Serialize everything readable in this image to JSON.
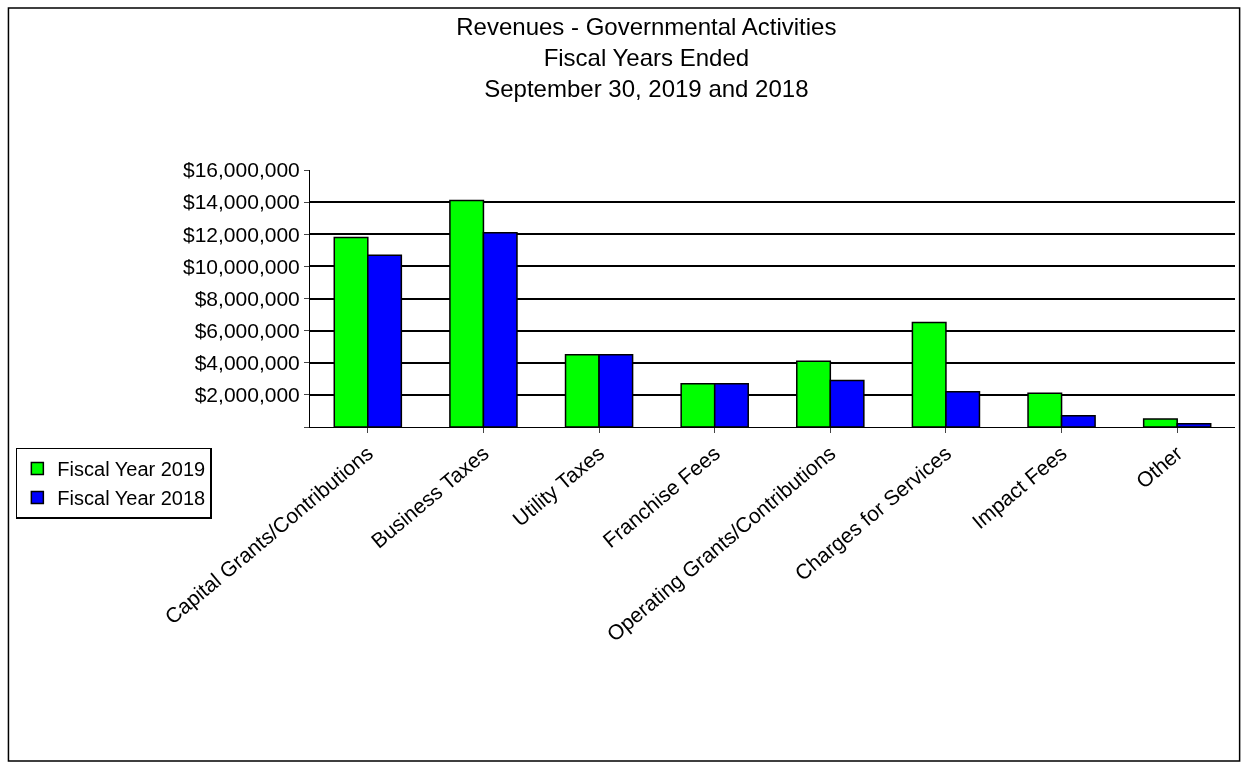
{
  "chart_data": {
    "type": "bar",
    "title": "Revenues - Governmental Activities\nFiscal Years Ended\nSeptember 30, 2019 and 2018",
    "categories": [
      "Capital Grants/Contributions",
      "Business Taxes",
      "Utility Taxes",
      "Franchise Fees",
      "Operating Grants/Contributions",
      "Charges for Services",
      "Impact Fees",
      "Other"
    ],
    "series": [
      {
        "name": "Fiscal Year 2019",
        "color": "#00ff00",
        "values": [
          11800000,
          14100000,
          4500000,
          2700000,
          4100000,
          6500000,
          2100000,
          500000
        ]
      },
      {
        "name": "Fiscal Year 2018",
        "color": "#0000ff",
        "values": [
          10700000,
          12100000,
          4500000,
          2700000,
          2900000,
          2200000,
          700000,
          200000
        ]
      }
    ],
    "ylim": [
      0,
      16000000
    ],
    "yticks": [
      {
        "value": 0,
        "label": null
      },
      {
        "value": 2000000,
        "label": "$2,000,000"
      },
      {
        "value": 4000000,
        "label": "$4,000,000"
      },
      {
        "value": 6000000,
        "label": "$6,000,000"
      },
      {
        "value": 8000000,
        "label": "$8,000,000"
      },
      {
        "value": 10000000,
        "label": "$10,000,000"
      },
      {
        "value": 12000000,
        "label": "$12,000,000"
      },
      {
        "value": 14000000,
        "label": "$14,000,000"
      },
      {
        "value": 16000000,
        "label": "$16,000,000"
      }
    ],
    "grid": "y",
    "legend": "bottom left"
  }
}
